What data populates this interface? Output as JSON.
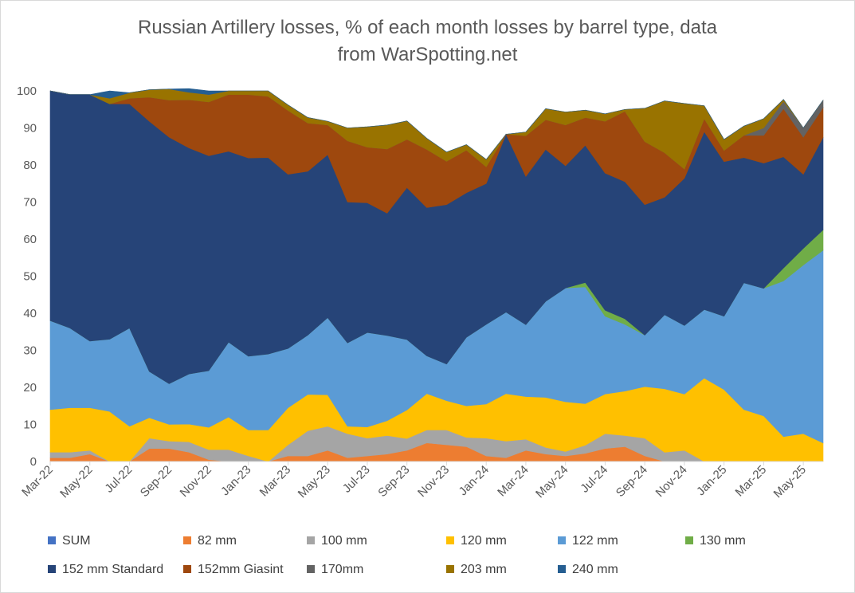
{
  "chart_data": {
    "type": "area",
    "stacked": true,
    "title": "Russian Artillery losses, % of each month losses by barrel type, data from WarSpotting.net",
    "title_lines": [
      "Russian Artillery losses, % of each month losses by barrel type, data",
      "from WarSpotting.net"
    ],
    "xlabel": "",
    "ylabel": "",
    "ylim": [
      0,
      100
    ],
    "yticks": [
      0,
      10,
      20,
      30,
      40,
      50,
      60,
      70,
      80,
      90,
      100
    ],
    "grid": false,
    "legend_position": "bottom",
    "x": [
      "Mar-22",
      "Apr-22",
      "May-22",
      "Jun-22",
      "Jul-22",
      "Aug-22",
      "Sep-22",
      "Oct-22",
      "Nov-22",
      "Dec-22",
      "Jan-23",
      "Feb-23",
      "Mar-23",
      "Apr-23",
      "May-23",
      "Jun-23",
      "Jul-23",
      "Aug-23",
      "Sep-23",
      "Oct-23",
      "Nov-23",
      "Dec-23",
      "Jan-24",
      "Feb-24",
      "Mar-24",
      "Apr-24",
      "May-24",
      "Jun-24",
      "Jul-24",
      "Aug-24",
      "Sep-24",
      "Oct-24",
      "Nov-24",
      "Dec-24",
      "Jan-25",
      "Feb-25",
      "Mar-25",
      "Apr-25",
      "May-25",
      "Jun-25"
    ],
    "xtick_labels": [
      "Mar-22",
      "May-22",
      "Jul-22",
      "Sep-22",
      "Nov-22",
      "Jan-23",
      "Mar-23",
      "May-23",
      "Jul-23",
      "Sep-23",
      "Nov-23",
      "Jan-24",
      "Mar-24",
      "May-24",
      "Jul-24",
      "Sep-24",
      "Nov-24",
      "Jan-25",
      "Mar-25",
      "May-25"
    ],
    "xtick_step": 2,
    "legend": [
      "SUM",
      "82 mm",
      "100 mm",
      "120 mm",
      "122 mm",
      "130 mm",
      "152 mm Standard",
      "152mm Giasint",
      "170mm",
      "203 mm",
      "240 mm"
    ],
    "series": [
      {
        "name": "SUM",
        "color": "#4472c4",
        "values": [
          0,
          0,
          0,
          0,
          0,
          0,
          0,
          0,
          0,
          0,
          0,
          0,
          0,
          0,
          0,
          0,
          0,
          0,
          0,
          0,
          0,
          0,
          0,
          0,
          0,
          0,
          0,
          0,
          0,
          0,
          0,
          0,
          0,
          0,
          0,
          0,
          0,
          0,
          0,
          0
        ]
      },
      {
        "name": "82 mm",
        "color": "#ed7d31",
        "values": [
          1,
          1,
          2,
          0,
          0,
          3.5,
          3.5,
          2.5,
          0.5,
          0,
          0,
          0,
          1.5,
          1.5,
          3,
          1,
          1.5,
          2,
          3,
          5,
          4.5,
          4,
          1.5,
          1,
          3,
          2,
          1.5,
          2.2,
          3.5,
          4,
          1.5,
          0,
          0,
          0,
          0,
          0,
          0,
          0,
          0,
          0
        ]
      },
      {
        "name": "100 mm",
        "color": "#a5a5a5",
        "values": [
          1.5,
          1.5,
          1,
          0,
          0,
          2.8,
          2,
          2.8,
          2.7,
          3.2,
          1.5,
          0,
          3,
          6.8,
          6.5,
          6.5,
          4.8,
          5,
          3.2,
          3.5,
          4,
          2.5,
          4.8,
          4.5,
          3,
          1.8,
          1.2,
          2.2,
          4,
          3,
          4.8,
          2.5,
          3,
          0,
          0,
          0,
          0,
          0,
          0,
          0
        ]
      },
      {
        "name": "120 mm",
        "color": "#ffc000",
        "values": [
          11.5,
          12,
          11.5,
          13.5,
          9.5,
          5.5,
          4.5,
          4.8,
          6,
          8.8,
          7,
          8.5,
          10,
          9.8,
          8.5,
          2,
          3,
          4,
          7.7,
          9.8,
          7.9,
          8.5,
          9.2,
          12.8,
          11.5,
          13.5,
          13.4,
          11.2,
          10.7,
          12,
          13.9,
          17.1,
          15.2,
          22.5,
          19.4,
          14,
          12.3,
          6.7,
          7.5,
          5
        ]
      },
      {
        "name": "122 mm",
        "color": "#5b9bd5",
        "values": [
          24,
          21.5,
          18,
          19.5,
          26.5,
          12.5,
          11,
          13.5,
          15.3,
          20.2,
          19.9,
          20.5,
          16,
          16,
          20.8,
          22.5,
          25.5,
          23,
          19,
          10.2,
          9.9,
          18.5,
          21.5,
          22,
          19.4,
          25.9,
          30.7,
          31.5,
          21,
          18,
          13.9,
          20,
          18.5,
          18.5,
          19.8,
          34.2,
          34.4,
          42,
          45.5,
          52
        ]
      },
      {
        "name": "130 mm",
        "color": "#70ad47",
        "values": [
          0,
          0,
          0,
          0,
          0,
          0,
          0,
          0,
          0,
          0,
          0,
          0,
          0,
          0,
          0,
          0,
          0,
          0,
          0,
          0,
          0,
          0,
          0,
          0,
          0,
          0,
          0,
          1.2,
          1.6,
          1.5,
          0,
          0,
          0,
          0,
          0,
          0,
          0,
          3.5,
          4.5,
          5.5
        ]
      },
      {
        "name": "152 mm Standard",
        "color": "#264478",
        "values": [
          62,
          63,
          66.5,
          63.5,
          60.5,
          67.5,
          66.5,
          61,
          58,
          51.5,
          53.5,
          53,
          47,
          44.2,
          44,
          38,
          35,
          33,
          41,
          40,
          43,
          39,
          38,
          48,
          40,
          41,
          33,
          37,
          37,
          37,
          35.2,
          31.7,
          39.7,
          48,
          41.7,
          33.8,
          33.8,
          30,
          20,
          25
        ]
      },
      {
        "name": "152mm Giasint",
        "color": "#9e480e",
        "values": [
          0,
          0,
          0,
          0,
          1.5,
          6.5,
          10,
          13,
          14.5,
          15.3,
          17.1,
          16.5,
          17.2,
          13,
          8,
          16.5,
          15,
          17.3,
          13,
          15.7,
          11.7,
          11.5,
          4.5,
          0,
          11,
          8,
          11,
          7.5,
          14,
          19,
          17,
          12,
          2.5,
          3.5,
          3,
          6,
          7.5,
          13,
          10,
          8
        ]
      },
      {
        "name": "170mm",
        "color": "#636363",
        "values": [
          0,
          0,
          0,
          0,
          0,
          0,
          0,
          0,
          0,
          0,
          0,
          0,
          0,
          0,
          0,
          0,
          0,
          0,
          0,
          0,
          0,
          0,
          0,
          0,
          0,
          0,
          0,
          0,
          0,
          0,
          0,
          0,
          0,
          0,
          0,
          0,
          2,
          2,
          2.5,
          2
        ]
      },
      {
        "name": "203 mm",
        "color": "#997300",
        "values": [
          0,
          0,
          0,
          1.5,
          1.5,
          2,
          3,
          2,
          2,
          1,
          1,
          1.5,
          1.5,
          1.5,
          1,
          3.5,
          5.5,
          6.5,
          5,
          3,
          2.5,
          1.5,
          2,
          0,
          1,
          3,
          3.5,
          2,
          2,
          0.5,
          9,
          14,
          17.7,
          3.5,
          3,
          2.5,
          2.5,
          0.5,
          0,
          0
        ]
      },
      {
        "name": "240 mm",
        "color": "#255e91",
        "values": [
          0,
          0,
          0,
          2,
          0,
          0,
          0,
          1,
          1,
          0,
          0,
          0,
          0,
          0,
          0,
          0,
          0,
          0,
          0,
          0,
          0,
          0,
          0,
          0,
          0,
          0,
          0,
          0,
          0,
          0,
          0,
          0,
          0,
          0,
          0,
          0,
          0,
          0,
          0,
          0
        ]
      }
    ]
  }
}
